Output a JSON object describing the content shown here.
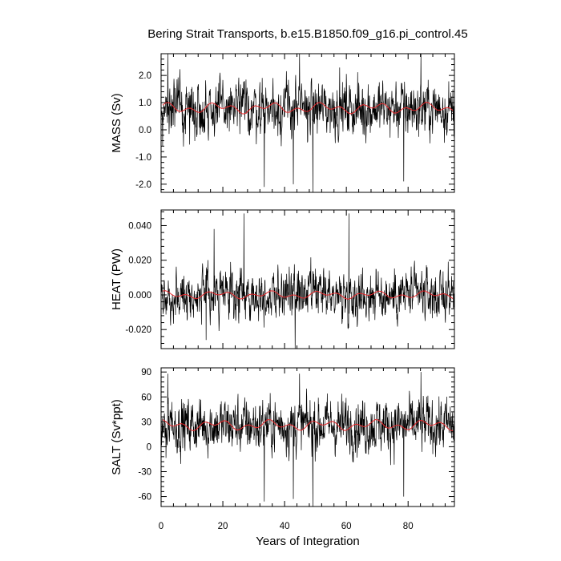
{
  "chart_data": {
    "type": "line",
    "title": "Bering Strait Transports, b.e15.B1850.f09_g16.pi_control.45",
    "xlabel": "Years of Integration",
    "xlim": [
      0,
      95
    ],
    "x_ticks": [
      0,
      20,
      40,
      60,
      80
    ],
    "x_tick_labels": [
      "0",
      "20",
      "40",
      "60",
      "80"
    ],
    "raw_series_color": "#000000",
    "smoothed_series_color": "#e8262a",
    "panels": [
      {
        "id": "mass",
        "ylabel": "MASS (Sv)",
        "ylim": [
          -2.3,
          2.8
        ],
        "y_ticks": [
          -2.0,
          -1.0,
          0.0,
          1.0,
          2.0
        ],
        "y_tick_labels": [
          "-2.0",
          "-1.0",
          "0.0",
          "1.0",
          "2.0"
        ],
        "mean": 0.8,
        "spread": 0.62,
        "smooth_amplitude": 0.22,
        "spikes": [
          [
            2.2,
            2.8
          ],
          [
            44.8,
            2.8
          ],
          [
            84.2,
            2.8
          ],
          [
            33.4,
            -2.1
          ],
          [
            49.2,
            -2.3
          ],
          [
            42.8,
            -2.0
          ],
          [
            78.6,
            -1.9
          ]
        ]
      },
      {
        "id": "heat",
        "ylabel": "HEAT (PW)",
        "ylim": [
          -0.031,
          0.049
        ],
        "y_ticks": [
          -0.02,
          0.0,
          0.02,
          0.04
        ],
        "y_tick_labels": [
          "-0.020",
          "0.000",
          "0.020",
          "0.040"
        ],
        "mean": 0.0,
        "spread": 0.0085,
        "smooth_amplitude": 0.0025,
        "spikes": [
          [
            26.8,
            0.047
          ],
          [
            60.8,
            0.047
          ],
          [
            43.4,
            -0.031
          ],
          [
            17.2,
            0.038
          ],
          [
            14.6,
            -0.026
          ]
        ]
      },
      {
        "id": "salt",
        "ylabel": "SALT (Sv*ppt)",
        "ylim": [
          -72,
          95
        ],
        "y_ticks": [
          -60,
          -30,
          0,
          30,
          60,
          90
        ],
        "y_tick_labels": [
          "-60",
          "-30",
          "0",
          "30",
          "60",
          "90"
        ],
        "mean": 26,
        "spread": 20,
        "smooth_amplitude": 7,
        "spikes": [
          [
            84.2,
            90
          ],
          [
            2.2,
            88
          ],
          [
            44.8,
            88
          ],
          [
            49.2,
            -72
          ],
          [
            33.4,
            -66
          ],
          [
            42.8,
            -63
          ],
          [
            78.6,
            -60
          ]
        ]
      }
    ]
  }
}
